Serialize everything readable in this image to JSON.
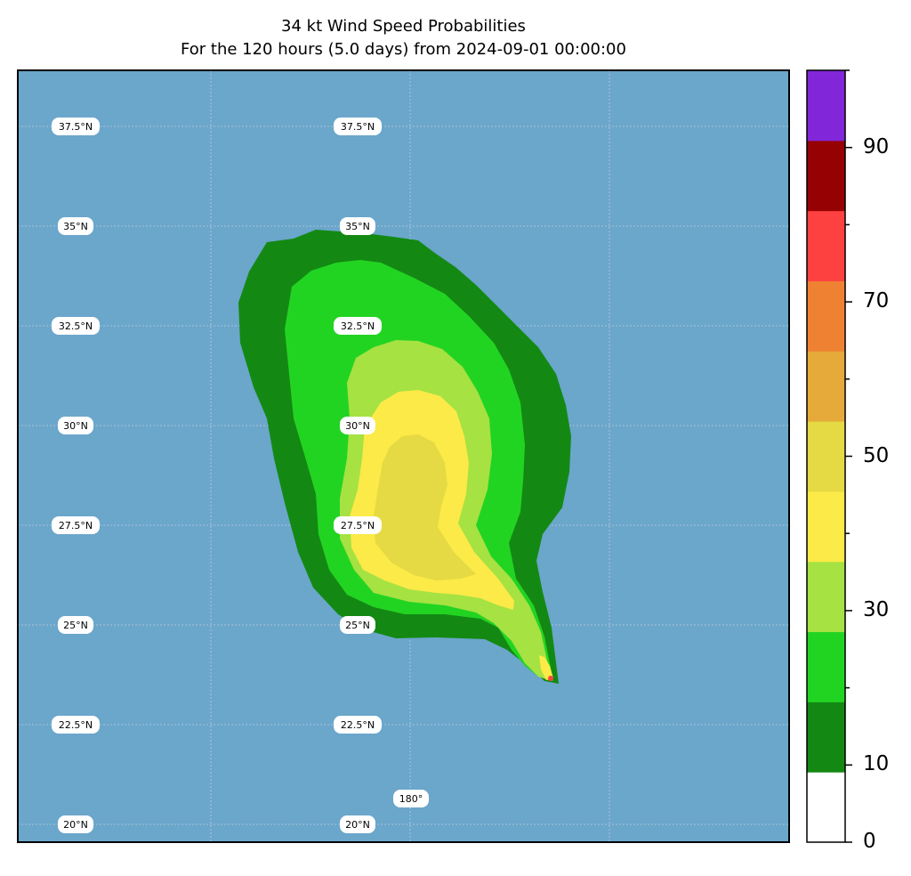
{
  "title": "34 kt Wind Speed Probabilities",
  "subtitle": "For the 120 hours (5.0 days) from 2024-09-01 00:00:00",
  "map": {
    "ocean_color": "#6ba6cb",
    "gridline_color": "#a9c4d8",
    "lat_labels_left": [
      "37.5°N",
      "35°N",
      "32.5°N",
      "30°N",
      "27.5°N",
      "25°N",
      "22.5°N",
      "20°N"
    ],
    "lat_labels_center": [
      "37.5°N",
      "35°N",
      "32.5°N",
      "30°N",
      "27.5°N",
      "25°N",
      "22.5°N",
      "20°N"
    ],
    "lon_label": "180°"
  },
  "colorbar": {
    "tick_labels": [
      "0",
      "10",
      "30",
      "50",
      "70",
      "90"
    ],
    "colors": [
      "#ffffff",
      "#138913",
      "#22d422",
      "#a5e242",
      "#fbea47",
      "#e5da43",
      "#e5aa3a",
      "#ef8133",
      "#fd4141",
      "#960203",
      "#8226d9"
    ]
  },
  "contour_colors": {
    "p0_10": "#138913",
    "p10_20": "#22d422",
    "p20_30": "#a5e242",
    "p30_40": "#fbea47",
    "p40_50": "#e5da43",
    "peak": "#fd4141"
  }
}
